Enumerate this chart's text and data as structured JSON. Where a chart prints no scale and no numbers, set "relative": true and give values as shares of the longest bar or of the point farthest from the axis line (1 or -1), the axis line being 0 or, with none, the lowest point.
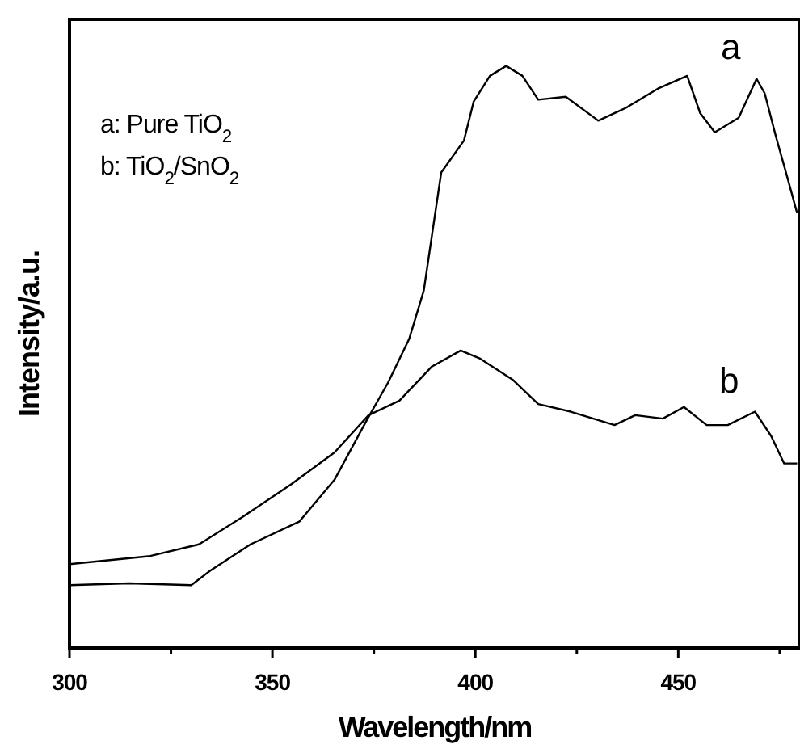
{
  "chart_data": {
    "type": "line",
    "xlabel": "Wavelength/nm",
    "ylabel": "Intensity/a.u.",
    "relative": true,
    "xlim": [
      300,
      480
    ],
    "xticks": [
      300,
      {
        "value": 325,
        "label": null
      },
      350,
      {
        "value": 375,
        "label": null
      },
      400,
      {
        "value": 425,
        "label": null
      },
      450,
      {
        "value": 475,
        "label": null
      }
    ],
    "annotations": [
      "a: Pure TiO$_{2}$",
      "b: TiO$_{2}$/SnO$_{2}$"
    ],
    "series": [
      {
        "name": "a",
        "color": "#000000",
        "x": [
          300,
          314.7,
          330,
          334.7,
          344.6,
          356.6,
          365.3,
          373.3,
          378.5,
          383.7,
          387.3,
          391.6,
          397.2,
          399.6,
          403.6,
          407.6,
          411.6,
          415.5,
          422.3,
          430.3,
          437.1,
          445,
          452.2,
          455.4,
          459,
          464.9,
          469.3,
          471.3,
          474.1,
          476.9,
          479.3
        ],
        "values": [
          0.108,
          0.111,
          0.108,
          0.133,
          0.178,
          0.217,
          0.289,
          0.392,
          0.456,
          0.531,
          0.614,
          0.817,
          0.872,
          0.939,
          0.983,
          1.0,
          0.983,
          0.942,
          0.947,
          0.906,
          0.928,
          0.961,
          0.983,
          0.919,
          0.886,
          0.911,
          0.978,
          0.953,
          0.878,
          0.808,
          0.747
        ]
      },
      {
        "name": "b",
        "color": "#000000",
        "x": [
          300,
          319.9,
          331.9,
          342.6,
          354.6,
          365.3,
          373.7,
          381.3,
          389.2,
          396.4,
          401.2,
          409.2,
          415.5,
          423.5,
          434.3,
          439.4,
          446.2,
          451.4,
          457,
          462.2,
          468.9,
          472.9,
          476.1,
          479.3
        ],
        "values": [
          0.144,
          0.158,
          0.178,
          0.225,
          0.281,
          0.336,
          0.4,
          0.425,
          0.483,
          0.511,
          0.497,
          0.461,
          0.419,
          0.406,
          0.383,
          0.4,
          0.394,
          0.414,
          0.383,
          0.383,
          0.406,
          0.364,
          0.317,
          0.317
        ]
      }
    ]
  }
}
